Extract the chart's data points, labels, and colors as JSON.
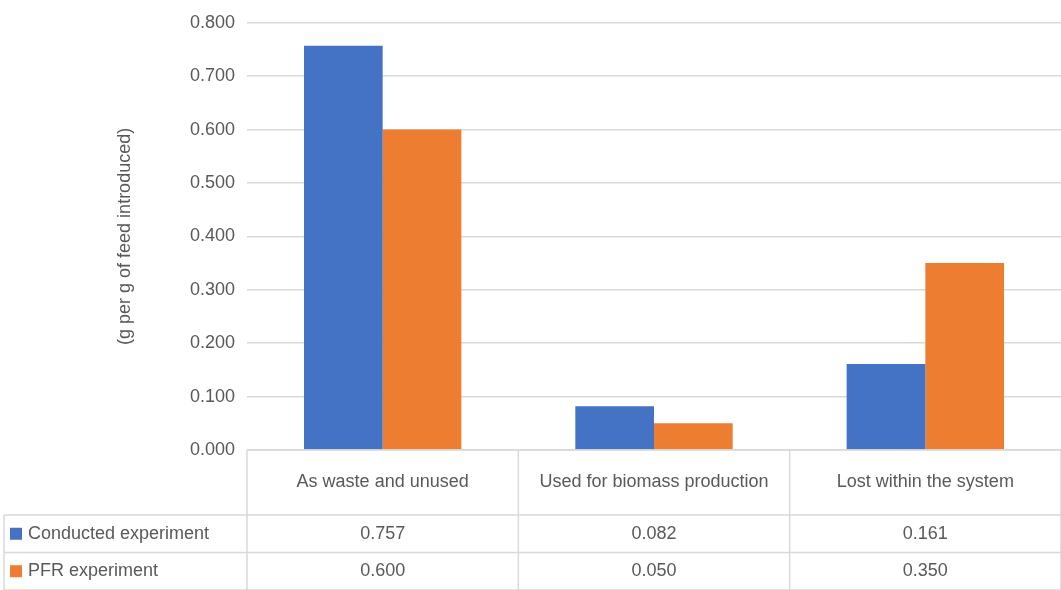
{
  "chart_data": {
    "type": "bar",
    "ylabel": "(g per g of feed introduced)",
    "categories": [
      "As waste and unused",
      "Used for biomass production",
      "Lost within the system"
    ],
    "series": [
      {
        "name": "Conducted experiment",
        "color": "#4472c4",
        "values": [
          0.757,
          0.082,
          0.161
        ],
        "value_labels": [
          "0.757",
          "0.082",
          "0.161"
        ]
      },
      {
        "name": "PFR experiment",
        "color": "#ed7d31",
        "values": [
          0.6,
          0.05,
          0.35
        ],
        "value_labels": [
          "0.600",
          "0.050",
          "0.350"
        ]
      }
    ],
    "ylim": [
      0,
      0.8
    ],
    "yticks": [
      {
        "value": 0,
        "label": "0.000"
      },
      {
        "value": 0.1,
        "label": "0.100"
      },
      {
        "value": 0.2,
        "label": "0.200"
      },
      {
        "value": 0.3,
        "label": "0.300"
      },
      {
        "value": 0.4,
        "label": "0.400"
      },
      {
        "value": 0.5,
        "label": "0.500"
      },
      {
        "value": 0.6,
        "label": "0.600"
      },
      {
        "value": 0.7,
        "label": "0.700"
      },
      {
        "value": 0.8,
        "label": "0.800"
      }
    ],
    "grid": "y",
    "legend": "bottom left"
  }
}
